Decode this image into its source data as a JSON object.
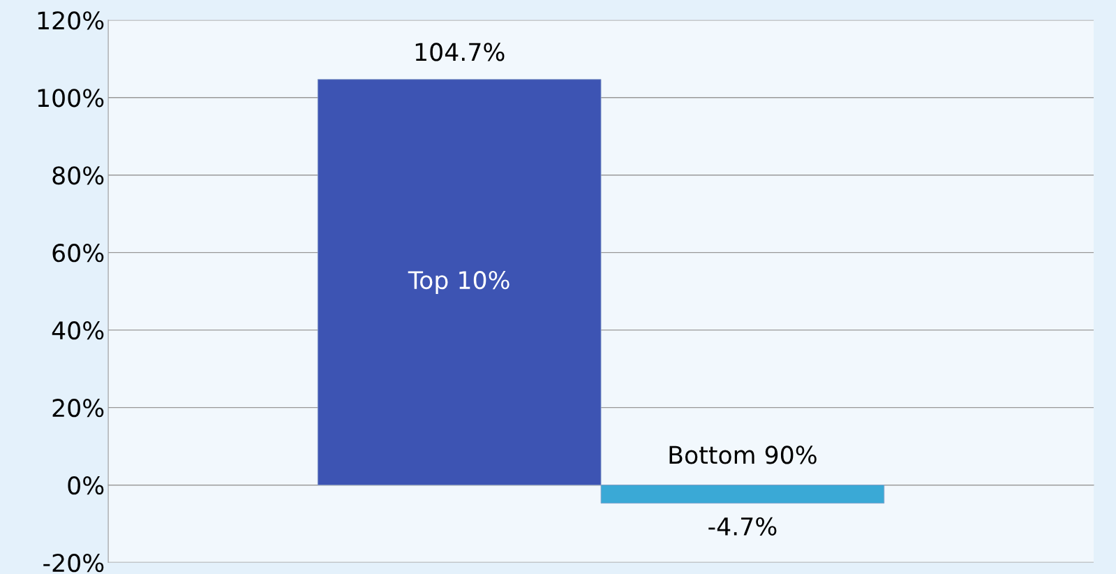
{
  "chart_data": {
    "type": "bar",
    "categories": [
      "Top 10%",
      "Bottom 90%"
    ],
    "values": [
      104.7,
      -4.7
    ],
    "colors": [
      "#3d54b3",
      "#3aa9d6"
    ],
    "value_labels": [
      "104.7%",
      "-4.7%"
    ],
    "ylim": [
      -20,
      120
    ],
    "yticks": [
      {
        "value": -20,
        "label": "-20%"
      },
      {
        "value": 0,
        "label": "0%"
      },
      {
        "value": 20,
        "label": "20%"
      },
      {
        "value": 40,
        "label": "40%"
      },
      {
        "value": 60,
        "label": "60%"
      },
      {
        "value": 80,
        "label": "80%"
      },
      {
        "value": 100,
        "label": "100%"
      },
      {
        "value": 120,
        "label": "120%"
      }
    ],
    "grid": "y",
    "legend": false,
    "tick_labels": "y"
  }
}
